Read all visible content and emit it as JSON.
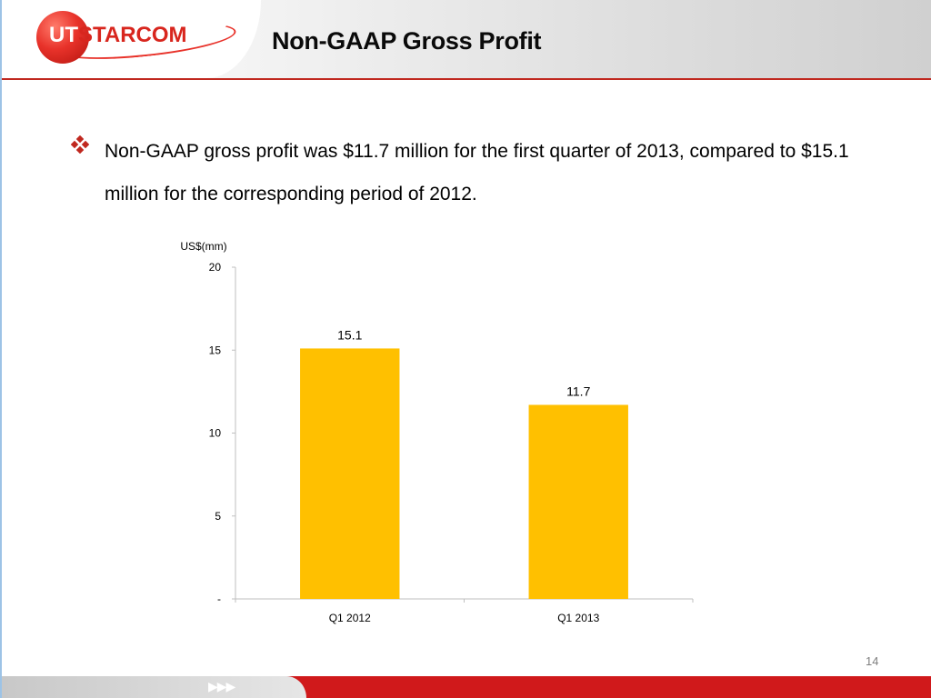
{
  "header": {
    "logo_text_ut": "UT",
    "logo_text_rest": "STARCOM",
    "title": "Non-GAAP Gross Profit"
  },
  "body": {
    "bullet_text": "Non-GAAP gross profit was $11.7 million for the first quarter of 2013, compared to $15.1 million for the corresponding period of 2012."
  },
  "colors": {
    "brand_red": "#d0191b",
    "bar_color": "#ffc000",
    "bullet_red": "#c0281f"
  },
  "chart_data": {
    "type": "bar",
    "categories": [
      "Q1 2012",
      "Q1 2013"
    ],
    "values": [
      15.1,
      11.7
    ],
    "value_labels": [
      "15.1",
      "11.7"
    ],
    "ylabel": "US$(mm)",
    "ylim": [
      0,
      20
    ],
    "yticks": [
      0,
      5,
      10,
      15,
      20
    ],
    "ytick_labels": [
      "-",
      "5",
      "10",
      "15",
      "20"
    ],
    "grid": false,
    "legend": "none"
  },
  "footer": {
    "arrows": "▶▶▶",
    "page_number": "14"
  }
}
